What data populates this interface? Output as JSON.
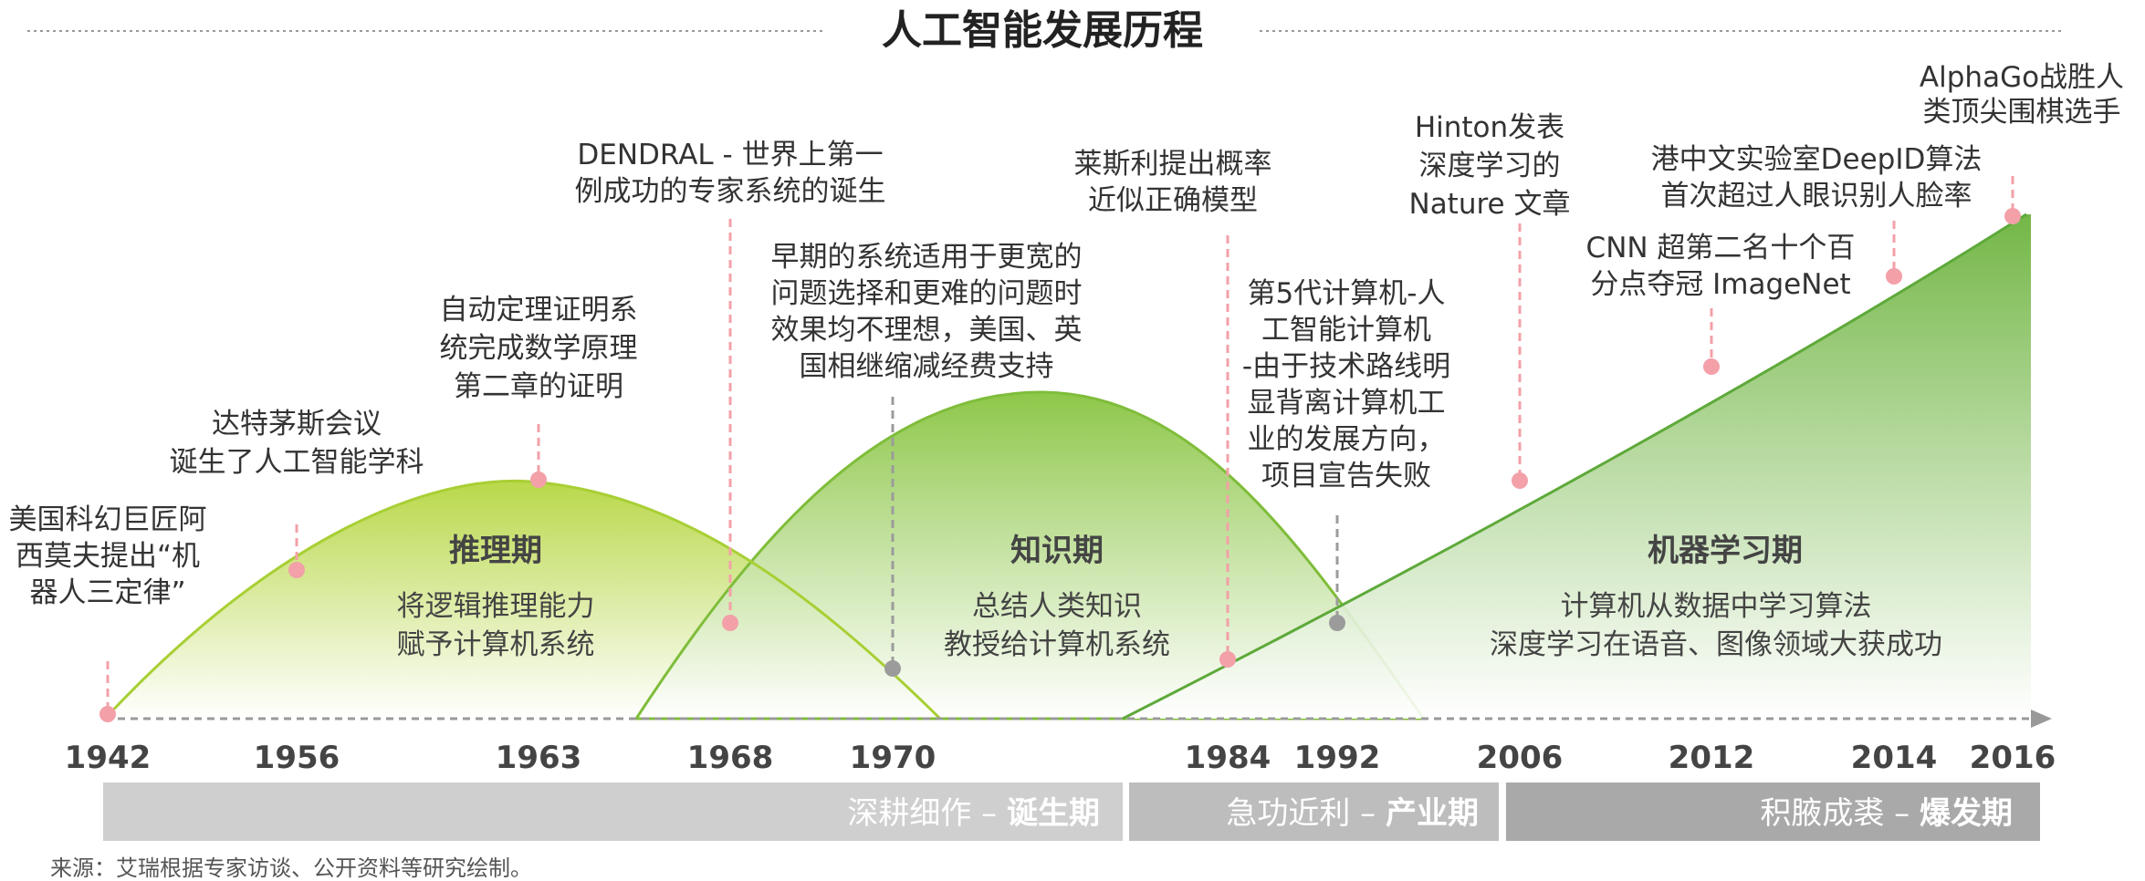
{
  "title": "人工智能发展历程",
  "phases": [
    {
      "name": "推理期",
      "desc": [
        "将逻辑推理能力",
        "赋予计算机系统"
      ]
    },
    {
      "name": "知识期",
      "desc": [
        "总结人类知识",
        "教授给计算机系统"
      ]
    },
    {
      "name": "机器学习期",
      "desc": [
        "计算机从数据中学习算法",
        "深度学习在语音、图像领域大获成功"
      ]
    }
  ],
  "years": [
    "1942",
    "1956",
    "1963",
    "1968",
    "1970",
    "1984",
    "1992",
    "2006",
    "2012",
    "2014",
    "2016"
  ],
  "events": [
    {
      "year": "1942",
      "type": "milestone",
      "text": [
        "美国科幻巨匠阿",
        "西莫夫提出“机",
        "器人三定律”"
      ]
    },
    {
      "year": "1956",
      "type": "milestone",
      "text": [
        "达特茅斯会议",
        "诞生了人工智能学科"
      ]
    },
    {
      "year": "1963",
      "type": "milestone",
      "text": [
        "自动定理证明系",
        "统完成数学原理",
        "第二章的证明"
      ]
    },
    {
      "year": "1968",
      "type": "milestone",
      "text": [
        "DENDRAL - 世界上第一",
        "例成功的专家系统的诞生"
      ]
    },
    {
      "year": "1970",
      "type": "setback",
      "text": [
        "早期的系统适用于更宽的",
        "问题选择和更难的问题时",
        "效果均不理想，美国、英",
        "国相继缩减经费支持"
      ]
    },
    {
      "year": "1984",
      "type": "milestone",
      "text": [
        "莱斯利提出概率",
        "近似正确模型"
      ]
    },
    {
      "year": "1992",
      "type": "setback",
      "text": [
        "第5代计算机-人",
        "工智能计算机",
        "-由于技术路线明",
        "显背离计算机工",
        "业的发展方向，",
        "项目宣告失败"
      ]
    },
    {
      "year": "2006",
      "type": "milestone",
      "text": [
        "Hinton发表",
        "深度学习的",
        "Nature 文章"
      ]
    },
    {
      "year": "2012",
      "type": "milestone",
      "text": [
        "CNN 超第二名十个百",
        "分点夺冠 ImageNet"
      ]
    },
    {
      "year": "2014",
      "type": "milestone",
      "text": [
        "港中文实验室DeepID算法",
        "首次超过人眼识别人脸率"
      ]
    },
    {
      "year": "2016",
      "type": "milestone",
      "text": [
        "AlphaGo战胜人",
        "类顶尖围棋选手"
      ]
    }
  ],
  "eras": [
    {
      "label": "深耕细作 – ",
      "strong": "诞生期"
    },
    {
      "label": "急功近利 – ",
      "strong": "产业期"
    },
    {
      "label": "积腋成裘 – ",
      "strong": "爆发期"
    }
  ],
  "source": "来源：艾瑞根据专家访谈、公开资料等研究绘制。",
  "colors": {
    "milestone_dot": "#f3a0a8",
    "setback_dot": "#9b9b9b",
    "green_light": "#b9d64a",
    "green_mid": "#8cc63f",
    "green_dark": "#5fad3a",
    "era_bar_1": "#cccccc",
    "era_bar_2": "#bdbdbd",
    "era_bar_3": "#a6a6a6"
  }
}
